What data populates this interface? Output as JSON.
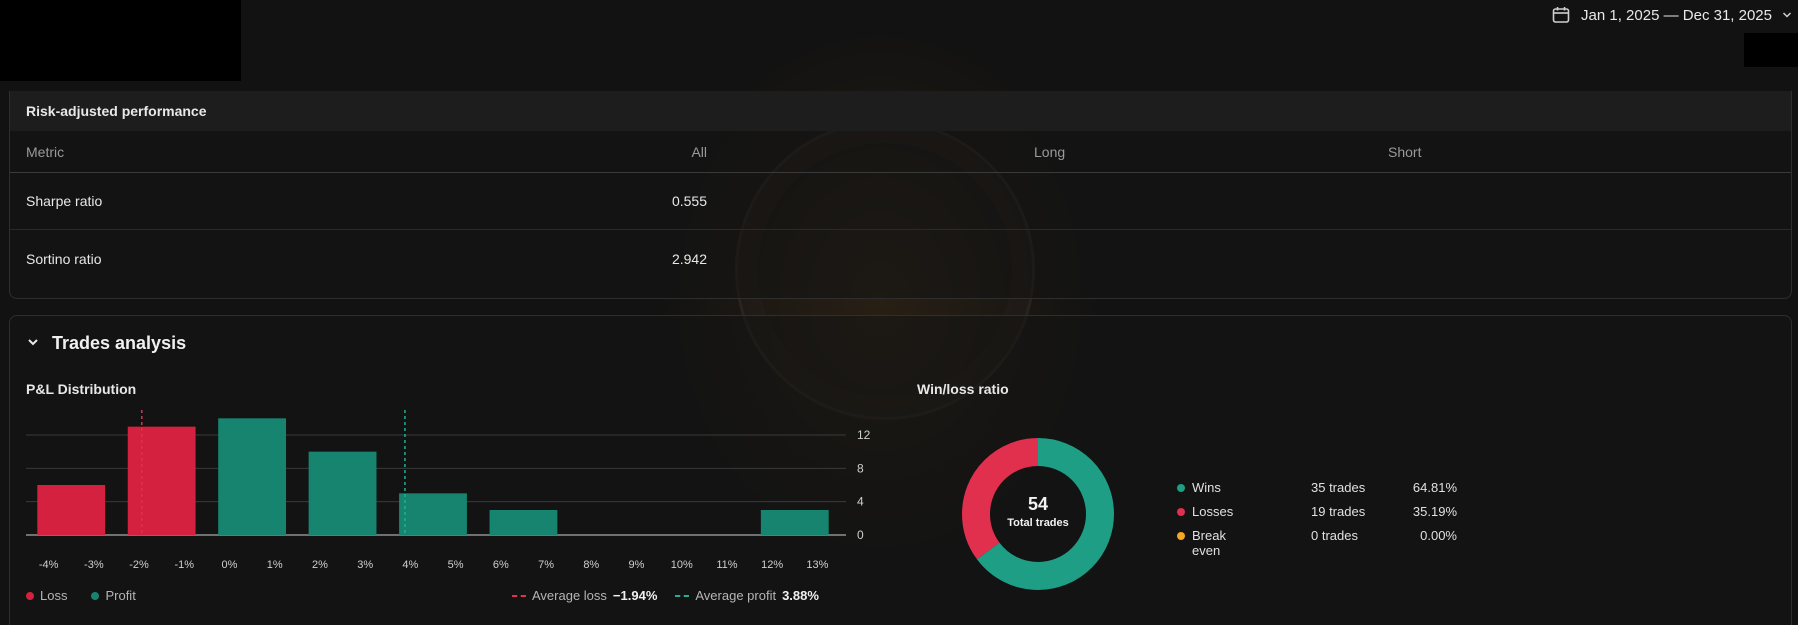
{
  "date_range": {
    "label": "Jan 1, 2025 — Dec 31, 2025"
  },
  "risk": {
    "title": "Risk-adjusted performance",
    "columns": {
      "metric": "Metric",
      "all": "All",
      "long": "Long",
      "short": "Short"
    },
    "rows": [
      {
        "metric": "Sharpe ratio",
        "all": "0.555",
        "long": "",
        "short": ""
      },
      {
        "metric": "Sortino ratio",
        "all": "2.942",
        "long": "",
        "short": ""
      }
    ]
  },
  "trades": {
    "title": "Trades analysis",
    "pnl_title": "P&L Distribution",
    "winloss_title": "Win/loss ratio",
    "legend": {
      "loss": "Loss",
      "profit": "Profit"
    },
    "avg_loss_label": "Average loss",
    "avg_loss_value": "−1.94%",
    "avg_profit_label": "Average profit",
    "avg_profit_value": "3.88%",
    "total_value": "54",
    "total_label": "Total trades",
    "outcomes": [
      {
        "label": "Wins",
        "count": "35 trades",
        "pct": "64.81%",
        "color": "#1f9e86"
      },
      {
        "label": "Losses",
        "count": "19 trades",
        "pct": "35.19%",
        "color": "#e0304e"
      },
      {
        "label": "Break even",
        "count": "0 trades",
        "pct": "0.00%",
        "color": "#f5a623"
      }
    ]
  },
  "chart_data": [
    {
      "type": "bar",
      "title": "P&L Distribution",
      "categories": [
        "-4%",
        "-3%",
        "-2%",
        "-1%",
        "0%",
        "1%",
        "2%",
        "3%",
        "4%",
        "5%",
        "6%",
        "7%",
        "8%",
        "9%",
        "10%",
        "11%",
        "12%",
        "13%"
      ],
      "bins": [
        {
          "from": -4,
          "to": -2,
          "value": 6,
          "kind": "loss"
        },
        {
          "from": -2,
          "to": 0,
          "value": 13,
          "kind": "loss"
        },
        {
          "from": 0,
          "to": 2,
          "value": 14,
          "kind": "profit"
        },
        {
          "from": 2,
          "to": 4,
          "value": 10,
          "kind": "profit"
        },
        {
          "from": 4,
          "to": 6,
          "value": 5,
          "kind": "profit"
        },
        {
          "from": 6,
          "to": 8,
          "value": 3,
          "kind": "profit"
        },
        {
          "from": 8,
          "to": 10,
          "value": 0,
          "kind": "profit"
        },
        {
          "from": 10,
          "to": 12,
          "value": 0,
          "kind": "profit"
        },
        {
          "from": 12,
          "to": 14,
          "value": 3,
          "kind": "profit"
        }
      ],
      "yticks": [
        0,
        4,
        8,
        12
      ],
      "ylim": [
        0,
        15
      ],
      "avg_loss": -1.94,
      "avg_profit": 3.88,
      "colors": {
        "loss": "#d4213f",
        "profit": "#17846f",
        "avg_loss": "#e0304e",
        "avg_profit": "#21b094"
      },
      "grid": true
    },
    {
      "type": "pie",
      "title": "Win/loss ratio",
      "labels": [
        "Wins",
        "Losses",
        "Break even"
      ],
      "values": [
        35,
        19,
        0
      ],
      "colors": [
        "#1f9e86",
        "#e0304e",
        "#f5a623"
      ]
    }
  ]
}
